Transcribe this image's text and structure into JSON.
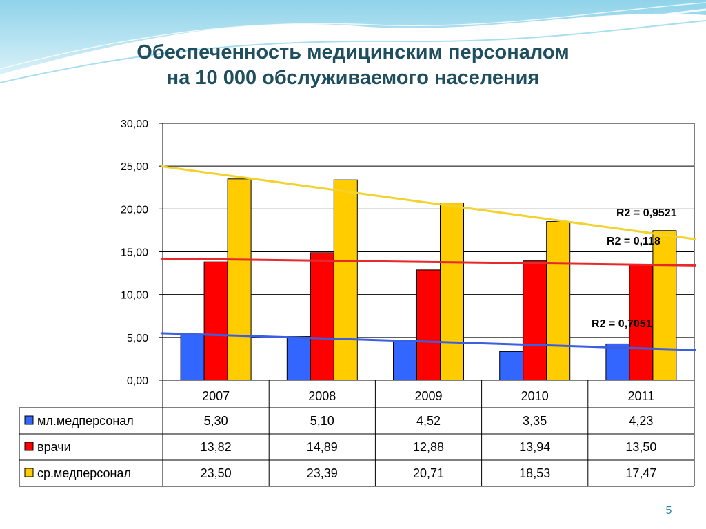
{
  "slide": {
    "title_line1": "Обеспеченность медицинским персоналом",
    "title_line2": "на 10 000 обслуживаемого населения",
    "page_number": "5"
  },
  "chart_data": {
    "type": "bar",
    "title": "Обеспеченность медицинским персоналом на 10 000 обслуживаемого населения",
    "categories": [
      "2007",
      "2008",
      "2009",
      "2010",
      "2011"
    ],
    "series": [
      {
        "name": "мл.медперсонал",
        "color": "#3366ff",
        "trend_color": "#3b5fe0",
        "values": [
          5.3,
          5.1,
          4.52,
          3.35,
          4.23
        ],
        "display": [
          "5,30",
          "5,10",
          "4,52",
          "3,35",
          "4,23"
        ],
        "r2": "R2 = 0,7051"
      },
      {
        "name": "врачи",
        "color": "#ff0000",
        "trend_color": "#e8282b",
        "values": [
          13.82,
          14.89,
          12.88,
          13.94,
          13.5
        ],
        "display": [
          "13,82",
          "14,89",
          "12,88",
          "13,94",
          "13,50"
        ],
        "r2": "R2 = 0,118"
      },
      {
        "name": "ср.медперсонал",
        "color": "#ffcc00",
        "trend_color": "#f2d22e",
        "values": [
          23.5,
          23.39,
          20.71,
          18.53,
          17.47
        ],
        "display": [
          "23,50",
          "23,39",
          "20,71",
          "18,53",
          "17,47"
        ],
        "r2": "R2 = 0,9521"
      }
    ],
    "ylim": [
      0,
      30
    ],
    "yticks": [
      "0,00",
      "5,00",
      "10,00",
      "15,00",
      "20,00",
      "25,00",
      "30,00"
    ],
    "grid": true,
    "trendlines": "linear",
    "legend": "data-table"
  }
}
